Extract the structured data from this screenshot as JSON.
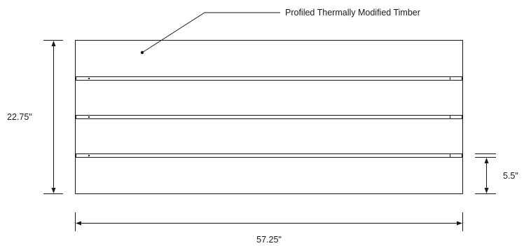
{
  "diagram": {
    "callout_label": "Profiled Thermally Modified Timber",
    "height_dimension": "22.75\"",
    "width_dimension": "57.25\"",
    "board_dimension": "5.5\"",
    "line_color": "#1a1a1a",
    "background_color": "#ffffff"
  }
}
